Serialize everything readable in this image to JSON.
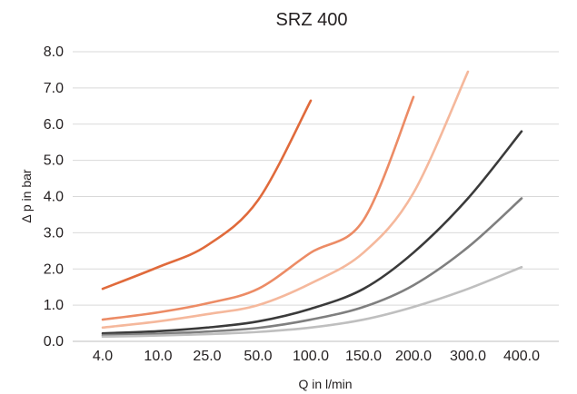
{
  "chart_data": {
    "type": "line",
    "title": "SRZ 400",
    "xlabel": "Q in l/min",
    "ylabel": "Δ p in bar",
    "ylim": [
      0,
      8
    ],
    "yticks": [
      "0.0",
      "1.0",
      "2.0",
      "3.0",
      "4.0",
      "5.0",
      "6.0",
      "7.0",
      "8.0"
    ],
    "categories": [
      "4.0",
      "10.0",
      "25.0",
      "50.0",
      "100.0",
      "150.0",
      "200.0",
      "300.0",
      "400.0"
    ],
    "x_scale": "categorical, irregular spacing",
    "grid": "horizontal",
    "legend": "none",
    "series": [
      {
        "color": "#e06a3b",
        "points": [
          [
            4,
            1.45
          ],
          [
            10,
            2.05
          ],
          [
            25,
            2.65
          ],
          [
            50,
            3.9
          ],
          [
            100,
            6.65
          ]
        ]
      },
      {
        "color": "#ec8b65",
        "points": [
          [
            4,
            0.6
          ],
          [
            10,
            0.8
          ],
          [
            25,
            1.05
          ],
          [
            50,
            1.45
          ],
          [
            100,
            2.45
          ],
          [
            150,
            3.35
          ],
          [
            200,
            6.75
          ]
        ]
      },
      {
        "color": "#f5b89c",
        "points": [
          [
            4,
            0.38
          ],
          [
            10,
            0.55
          ],
          [
            25,
            0.75
          ],
          [
            50,
            1.0
          ],
          [
            100,
            1.6
          ],
          [
            150,
            2.45
          ],
          [
            200,
            4.1
          ],
          [
            300,
            7.45
          ]
        ]
      },
      {
        "color": "#3a3a3a",
        "points": [
          [
            4,
            0.22
          ],
          [
            10,
            0.28
          ],
          [
            25,
            0.38
          ],
          [
            50,
            0.55
          ],
          [
            100,
            0.9
          ],
          [
            150,
            1.45
          ],
          [
            200,
            2.45
          ],
          [
            300,
            3.95
          ],
          [
            400,
            5.8
          ]
        ]
      },
      {
        "color": "#7f7f7f",
        "points": [
          [
            4,
            0.17
          ],
          [
            10,
            0.21
          ],
          [
            25,
            0.27
          ],
          [
            50,
            0.37
          ],
          [
            100,
            0.6
          ],
          [
            150,
            0.95
          ],
          [
            200,
            1.55
          ],
          [
            300,
            2.6
          ],
          [
            400,
            3.95
          ]
        ]
      },
      {
        "color": "#bfbfbf",
        "points": [
          [
            4,
            0.13
          ],
          [
            10,
            0.16
          ],
          [
            25,
            0.2
          ],
          [
            50,
            0.26
          ],
          [
            100,
            0.38
          ],
          [
            150,
            0.6
          ],
          [
            200,
            0.95
          ],
          [
            300,
            1.45
          ],
          [
            400,
            2.05
          ]
        ]
      }
    ]
  }
}
